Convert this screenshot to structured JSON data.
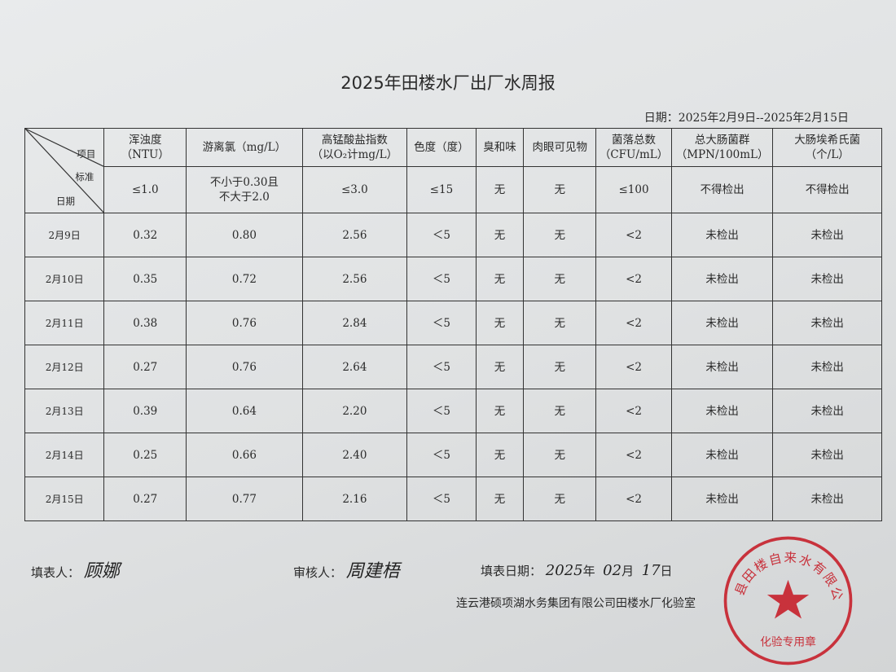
{
  "title": "2025年田楼水厂出厂水周报",
  "date_range": "日期：2025年2月9日--2025年2月15日",
  "corner": {
    "item": "项目",
    "standard": "标准",
    "date": "日期"
  },
  "columns": [
    {
      "name": "浑浊度",
      "unit": "（NTU）",
      "standard": "≤1.0"
    },
    {
      "name": "游离氯（mg/L）",
      "unit": "",
      "standard": "不小于0.30且\n不大于2.0"
    },
    {
      "name": "高锰酸盐指数",
      "unit": "（以O₂计mg/L）",
      "standard": "≤3.0"
    },
    {
      "name": "色度（度）",
      "unit": "",
      "standard": "≤15"
    },
    {
      "name": "臭和味",
      "unit": "",
      "standard": "无"
    },
    {
      "name": "肉眼可见物",
      "unit": "",
      "standard": "无"
    },
    {
      "name": "菌落总数",
      "unit": "（CFU/mL）",
      "standard": "≤100"
    },
    {
      "name": "总大肠菌群",
      "unit": "（MPN/100mL）",
      "standard": "不得检出"
    },
    {
      "name": "大肠埃希氏菌",
      "unit": "（个/L）",
      "standard": "不得检出"
    }
  ],
  "rows": [
    [
      "2月9日",
      "0.32",
      "0.80",
      "2.56",
      "＜5",
      "无",
      "无",
      "<2",
      "未检出",
      "未检出"
    ],
    [
      "2月10日",
      "0.35",
      "0.72",
      "2.56",
      "＜5",
      "无",
      "无",
      "<2",
      "未检出",
      "未检出"
    ],
    [
      "2月11日",
      "0.38",
      "0.76",
      "2.84",
      "＜5",
      "无",
      "无",
      "<2",
      "未检出",
      "未检出"
    ],
    [
      "2月12日",
      "0.27",
      "0.76",
      "2.64",
      "＜5",
      "无",
      "无",
      "<2",
      "未检出",
      "未检出"
    ],
    [
      "2月13日",
      "0.39",
      "0.64",
      "2.20",
      "＜5",
      "无",
      "无",
      "<2",
      "未检出",
      "未检出"
    ],
    [
      "2月14日",
      "0.25",
      "0.66",
      "2.40",
      "＜5",
      "无",
      "无",
      "<2",
      "未检出",
      "未检出"
    ],
    [
      "2月15日",
      "0.27",
      "0.77",
      "2.16",
      "＜5",
      "无",
      "无",
      "<2",
      "未检出",
      "未检出"
    ]
  ],
  "footer": {
    "filler_label": "填表人：",
    "filler_signature": "顾娜",
    "reviewer_label": "审核人：",
    "reviewer_signature": "周建梧",
    "fill_date_label": "填表日期：",
    "fill_year": "2025",
    "year_char": "年",
    "fill_month": "02",
    "month_char": "月",
    "fill_day": "17",
    "day_char": "日",
    "organization": "连云港硕项湖水务集团有限公司田楼水厂化验室"
  },
  "stamp": {
    "text": "县田楼自来水有限公司",
    "bottom_text": "化验专用章",
    "color": "#c8323c"
  }
}
